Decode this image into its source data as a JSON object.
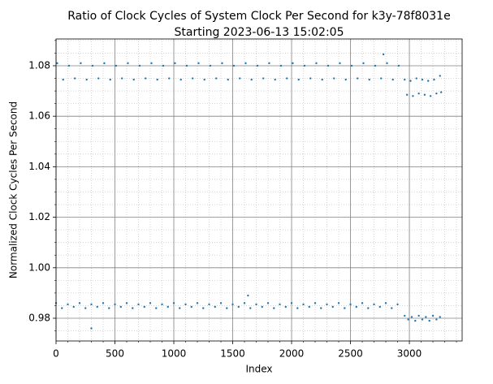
{
  "chart_data": {
    "type": "scatter",
    "title": "Ratio of Clock Cycles of System Clock Per Second for k3y-78f8031e",
    "subtitle": "Starting 2023-06-13 15:02:05",
    "x_label": "Index",
    "y_label": "Normalized Clock Cycles Per Second",
    "xlim": [
      0,
      3448
    ],
    "ylim": [
      0.971,
      1.0906
    ],
    "xticks": [
      0,
      500,
      1000,
      1500,
      2000,
      2500,
      3000
    ],
    "yticks": [
      0.98,
      {
        "value": 1,
        "label": "1.00"
      },
      1.02,
      1.04,
      1.06,
      1.08
    ],
    "xminorticks": [
      100,
      200,
      300,
      400,
      600,
      700,
      800,
      900,
      1100,
      1200,
      1300,
      1400,
      1600,
      1700,
      1800,
      1900,
      2100,
      2200,
      2300,
      2400,
      2600,
      2700,
      2800,
      2900,
      3100,
      3200,
      3300,
      3400
    ],
    "yminorticks": [
      0.975,
      0.985,
      0.99,
      0.995,
      1.005,
      1.01,
      1.015,
      1.025,
      1.03,
      1.035,
      1.045,
      1.05,
      1.055,
      1.065,
      1.07,
      1.075,
      1.085,
      1.09
    ],
    "grid": true,
    "minor_grid": true,
    "series": [
      {
        "color": "#1f77b4",
        "x": [
          10,
          110,
          210,
          310,
          410,
          510,
          610,
          710,
          810,
          910,
          1010,
          1110,
          1210,
          1310,
          1410,
          1510,
          1610,
          1710,
          1810,
          1910,
          2010,
          2110,
          2210,
          2310,
          2410,
          2510,
          2610,
          2710,
          2810,
          2910,
          2960,
          3010,
          3060,
          3110,
          3160,
          3210,
          3260
        ],
        "values": [
          1.081,
          1.08,
          1.081,
          1.08,
          1.081,
          1.08,
          1.081,
          1.08,
          1.081,
          1.08,
          1.081,
          1.08,
          1.081,
          1.08,
          1.081,
          1.08,
          1.081,
          1.08,
          1.081,
          1.08,
          1.081,
          1.08,
          1.081,
          1.08,
          1.081,
          1.08,
          1.081,
          1.08,
          1.081,
          1.08,
          1.0745,
          1.074,
          1.075,
          1.0745,
          1.074,
          1.0745,
          1.076
        ]
      },
      {
        "color": "#1f77b4",
        "x": [
          60,
          160,
          260,
          360,
          460,
          560,
          660,
          760,
          860,
          960,
          1060,
          1160,
          1260,
          1360,
          1460,
          1560,
          1660,
          1760,
          1860,
          1960,
          2060,
          2160,
          2260,
          2360,
          2460,
          2560,
          2660,
          2760,
          2860,
          2980,
          3030,
          3080,
          3130,
          3180,
          3230,
          3270
        ],
        "values": [
          1.0745,
          1.075,
          1.0745,
          1.075,
          1.0745,
          1.075,
          1.0745,
          1.075,
          1.0745,
          1.075,
          1.0745,
          1.075,
          1.0745,
          1.075,
          1.0745,
          1.075,
          1.0745,
          1.075,
          1.0745,
          1.075,
          1.0745,
          1.075,
          1.0745,
          1.075,
          1.0745,
          1.075,
          1.0745,
          1.075,
          1.0745,
          1.0685,
          1.068,
          1.069,
          1.0685,
          1.068,
          1.069,
          1.0695
        ]
      },
      {
        "color": "#1f77b4",
        "x": [
          0,
          100,
          200,
          300,
          400,
          500,
          600,
          700,
          800,
          900,
          1000,
          1100,
          1200,
          1300,
          1400,
          1500,
          1600,
          1700,
          1800,
          1900,
          2000,
          2100,
          2200,
          2300,
          2400,
          2500,
          2600,
          2700,
          2800,
          2900,
          2960,
          3020,
          3080,
          3140,
          3200,
          3260
        ],
        "values": [
          0.986,
          0.9855,
          0.986,
          0.9855,
          0.986,
          0.9855,
          0.986,
          0.9855,
          0.986,
          0.9855,
          0.986,
          0.9855,
          0.986,
          0.9855,
          0.986,
          0.9855,
          0.986,
          0.9855,
          0.986,
          0.9855,
          0.986,
          0.9855,
          0.986,
          0.9855,
          0.986,
          0.9855,
          0.986,
          0.9855,
          0.986,
          0.9855,
          0.981,
          0.9805,
          0.981,
          0.9805,
          0.981,
          0.9805
        ]
      },
      {
        "color": "#1f77b4",
        "x": [
          50,
          150,
          250,
          350,
          450,
          550,
          650,
          750,
          850,
          950,
          1050,
          1150,
          1250,
          1350,
          1450,
          1550,
          1650,
          1750,
          1850,
          1950,
          2050,
          2150,
          2250,
          2350,
          2450,
          2550,
          2650,
          2750,
          2850,
          2990,
          3050,
          3110,
          3170,
          3230
        ],
        "values": [
          0.984,
          0.9845,
          0.984,
          0.9845,
          0.984,
          0.9845,
          0.984,
          0.9845,
          0.984,
          0.9845,
          0.984,
          0.9845,
          0.984,
          0.9845,
          0.984,
          0.9845,
          0.984,
          0.9845,
          0.984,
          0.9845,
          0.984,
          0.9845,
          0.984,
          0.9845,
          0.984,
          0.9845,
          0.984,
          0.9845,
          0.984,
          0.9795,
          0.979,
          0.9795,
          0.979,
          0.9795
        ]
      },
      {
        "color": "#1f77b4",
        "x": [
          300,
          1630,
          2780
        ],
        "values": [
          0.976,
          0.989,
          1.0845
        ]
      }
    ]
  }
}
